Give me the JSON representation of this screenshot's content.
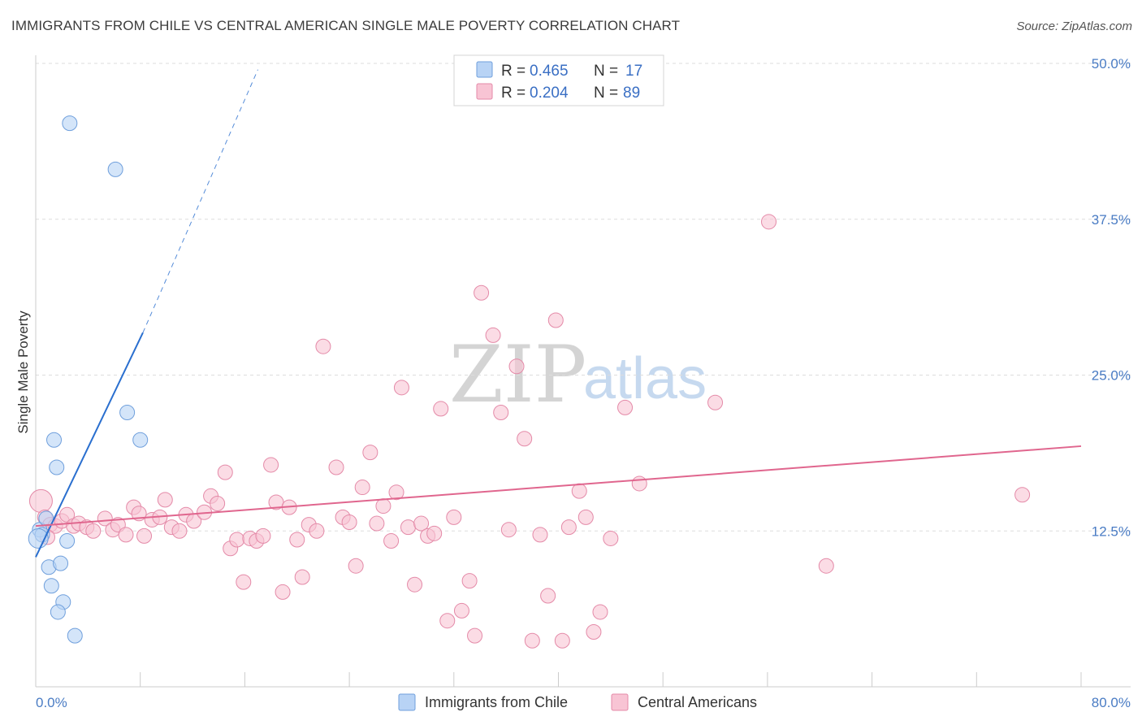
{
  "title": "IMMIGRANTS FROM CHILE VS CENTRAL AMERICAN SINGLE MALE POVERTY CORRELATION CHART",
  "source": "Source: ZipAtlas.com",
  "watermark": {
    "zip": "ZIP",
    "atlas": "atlas"
  },
  "colors": {
    "chile_fill": "#b8d3f5",
    "chile_stroke": "#6f9fdc",
    "chile_line": "#2a6fcf",
    "central_fill": "#f8c4d4",
    "central_stroke": "#e48aa8",
    "central_line": "#e0668e",
    "grid": "#dddddd",
    "axis_label": "#4a7cc4"
  },
  "legend": {
    "rows": [
      {
        "r_label": "R = ",
        "r_value": "0.465",
        "n_label": "N = ",
        "n_value": "17"
      },
      {
        "r_label": "R = ",
        "r_value": "0.204",
        "n_label": "N = ",
        "n_value": "89"
      }
    ]
  },
  "chart_data": {
    "type": "scatter",
    "ylabel": "Single Male Poverty",
    "xlim": [
      0,
      80
    ],
    "ylim": [
      0,
      50
    ],
    "x_tick_labels": [
      "0.0%",
      "80.0%"
    ],
    "y_ticks": [
      12.5,
      25.0,
      37.5,
      50.0
    ],
    "y_tick_labels": [
      "12.5%",
      "25.0%",
      "37.5%",
      "50.0%"
    ],
    "grid": true,
    "legend_position": "top-center",
    "series": [
      {
        "name": "Immigrants from Chile",
        "points": [
          [
            2.6,
            45.2
          ],
          [
            6.1,
            41.5
          ],
          [
            0.3,
            12.6
          ],
          [
            0.5,
            12.2
          ],
          [
            0.8,
            13.5
          ],
          [
            1.4,
            19.8
          ],
          [
            1.6,
            17.6
          ],
          [
            2.4,
            11.7
          ],
          [
            1.0,
            9.6
          ],
          [
            1.9,
            9.9
          ],
          [
            1.2,
            8.1
          ],
          [
            2.1,
            6.8
          ],
          [
            1.7,
            6.0
          ],
          [
            3.0,
            4.1
          ],
          [
            7.0,
            22.0
          ],
          [
            8.0,
            19.8
          ],
          [
            0.2,
            11.9
          ]
        ],
        "trend": {
          "x0": 0.0,
          "y0": 10.4,
          "x1": 8.2,
          "y1": 28.4,
          "x1_dash": 17.0,
          "y1_dash": 49.5
        }
      },
      {
        "name": "Central Americans",
        "points": [
          [
            0.4,
            14.9
          ],
          [
            0.7,
            13.6
          ],
          [
            1.1,
            13.0
          ],
          [
            1.5,
            12.9
          ],
          [
            2.0,
            13.3
          ],
          [
            2.4,
            13.8
          ],
          [
            2.9,
            12.9
          ],
          [
            3.3,
            13.1
          ],
          [
            3.9,
            12.8
          ],
          [
            4.4,
            12.5
          ],
          [
            5.3,
            13.5
          ],
          [
            5.9,
            12.6
          ],
          [
            6.3,
            13.0
          ],
          [
            6.9,
            12.2
          ],
          [
            7.5,
            14.4
          ],
          [
            7.9,
            13.9
          ],
          [
            8.3,
            12.1
          ],
          [
            8.9,
            13.4
          ],
          [
            9.5,
            13.6
          ],
          [
            9.9,
            15.0
          ],
          [
            10.4,
            12.8
          ],
          [
            11.0,
            12.5
          ],
          [
            11.5,
            13.8
          ],
          [
            12.1,
            13.3
          ],
          [
            12.9,
            14.0
          ],
          [
            13.4,
            15.3
          ],
          [
            13.9,
            14.7
          ],
          [
            14.5,
            17.2
          ],
          [
            14.9,
            11.1
          ],
          [
            15.4,
            11.8
          ],
          [
            15.9,
            8.4
          ],
          [
            16.4,
            11.9
          ],
          [
            16.9,
            11.7
          ],
          [
            17.4,
            12.1
          ],
          [
            18.0,
            17.8
          ],
          [
            18.4,
            14.8
          ],
          [
            18.9,
            7.6
          ],
          [
            19.4,
            14.4
          ],
          [
            20.0,
            11.8
          ],
          [
            20.4,
            8.8
          ],
          [
            20.9,
            13.0
          ],
          [
            21.5,
            12.5
          ],
          [
            22.0,
            27.3
          ],
          [
            23.0,
            17.6
          ],
          [
            23.5,
            13.6
          ],
          [
            24.0,
            13.2
          ],
          [
            24.5,
            9.7
          ],
          [
            25.0,
            16.0
          ],
          [
            25.6,
            18.8
          ],
          [
            26.1,
            13.1
          ],
          [
            26.6,
            14.5
          ],
          [
            27.2,
            11.7
          ],
          [
            27.6,
            15.6
          ],
          [
            28.0,
            24.0
          ],
          [
            28.5,
            12.8
          ],
          [
            29.0,
            8.2
          ],
          [
            29.5,
            13.1
          ],
          [
            30.0,
            12.1
          ],
          [
            30.5,
            12.3
          ],
          [
            31.0,
            22.3
          ],
          [
            31.5,
            5.3
          ],
          [
            32.0,
            13.6
          ],
          [
            32.6,
            6.1
          ],
          [
            33.2,
            8.5
          ],
          [
            33.6,
            4.1
          ],
          [
            34.1,
            31.6
          ],
          [
            35.0,
            28.2
          ],
          [
            35.6,
            22.0
          ],
          [
            36.2,
            12.6
          ],
          [
            36.8,
            25.7
          ],
          [
            37.4,
            19.9
          ],
          [
            38.0,
            3.7
          ],
          [
            38.6,
            12.2
          ],
          [
            39.2,
            7.3
          ],
          [
            39.8,
            29.4
          ],
          [
            40.3,
            3.7
          ],
          [
            40.8,
            12.8
          ],
          [
            41.6,
            15.7
          ],
          [
            42.1,
            13.6
          ],
          [
            42.7,
            4.4
          ],
          [
            43.2,
            6.0
          ],
          [
            44.0,
            11.9
          ],
          [
            45.1,
            22.4
          ],
          [
            46.2,
            16.3
          ],
          [
            52.0,
            22.8
          ],
          [
            56.1,
            37.3
          ],
          [
            60.5,
            9.7
          ],
          [
            75.5,
            15.4
          ],
          [
            0.9,
            12.0
          ]
        ],
        "trend": {
          "x0": 0.0,
          "y0": 12.9,
          "x1": 80.0,
          "y1": 19.3
        }
      }
    ]
  }
}
